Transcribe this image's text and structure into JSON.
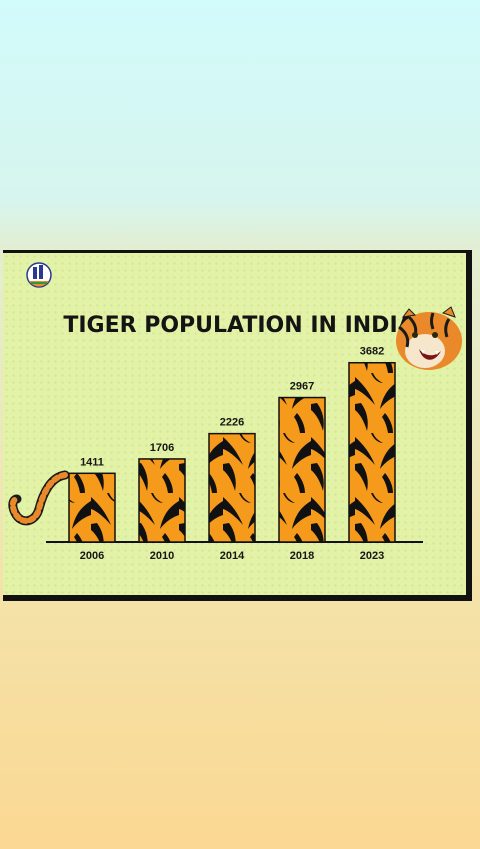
{
  "chart_data": {
    "type": "bar",
    "title": "TIGER POPULATION IN INDIA",
    "categories": [
      "2006",
      "2010",
      "2014",
      "2018",
      "2023"
    ],
    "values": [
      1411,
      1706,
      2226,
      2967,
      3682
    ],
    "ylim": [
      0,
      3800
    ],
    "xlabel": "",
    "ylabel": "",
    "grid": false,
    "legend": "none",
    "colors": {
      "bar_fill": "#f59a1b",
      "bar_stripes": "#111111",
      "background": "#e2f2a6"
    },
    "icons": [
      "logo",
      "tiger-tail-icon",
      "tiger-head-icon"
    ]
  }
}
